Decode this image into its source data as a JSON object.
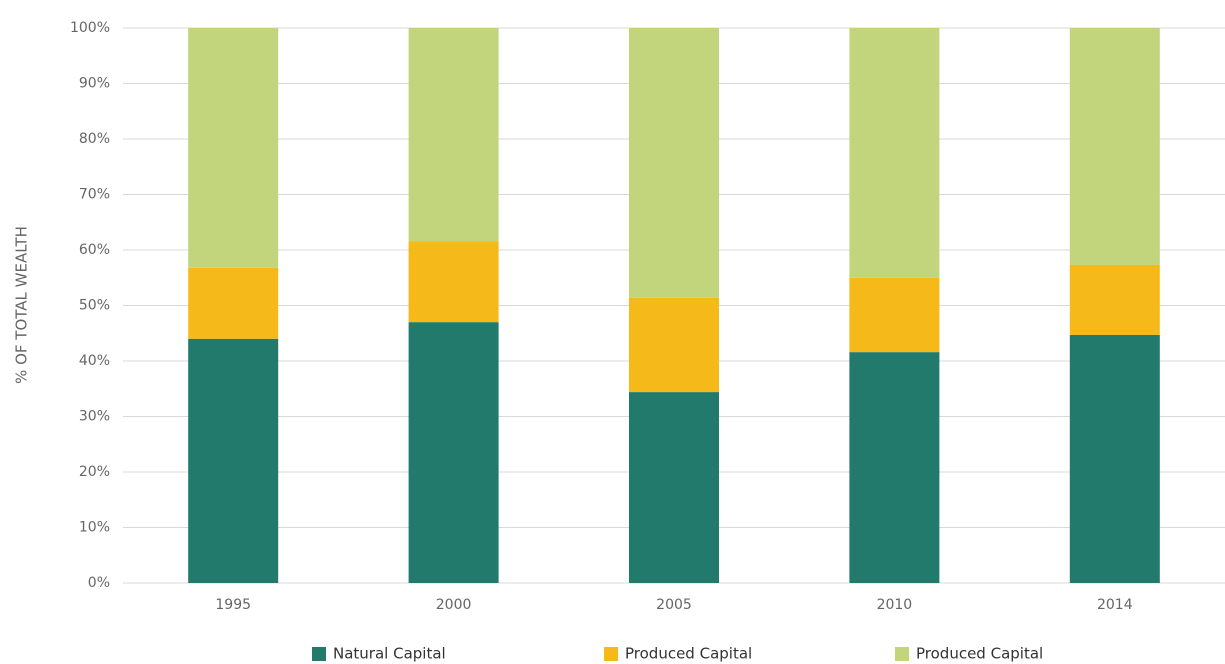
{
  "chart_data": {
    "type": "stacked_bar",
    "y_label": "% OF TOTAL WEALTH",
    "categories": [
      "1995",
      "2000",
      "2005",
      "2010",
      "2014"
    ],
    "series": [
      {
        "name": "Natural Capital",
        "color": "#217a6b",
        "values": [
          44.0,
          47.0,
          34.4,
          41.6,
          44.7
        ]
      },
      {
        "name": "Produced Capital",
        "color": "#f5b91a",
        "values": [
          12.8,
          14.6,
          17.0,
          13.4,
          12.6
        ]
      },
      {
        "name": "Produced Capital",
        "color": "#c2d57c",
        "values": [
          43.2,
          38.4,
          48.6,
          45.0,
          42.7
        ]
      }
    ],
    "ylim": [
      0,
      100
    ],
    "yticks": [
      {
        "value": 0,
        "label": "0%"
      },
      {
        "value": 10,
        "label": "10%"
      },
      {
        "value": 20,
        "label": "20%"
      },
      {
        "value": 30,
        "label": "30%"
      },
      {
        "value": 40,
        "label": "40%"
      },
      {
        "value": 50,
        "label": "50%"
      },
      {
        "value": 60,
        "label": "60%"
      },
      {
        "value": 70,
        "label": "70%"
      },
      {
        "value": 80,
        "label": "80%"
      },
      {
        "value": 90,
        "label": "90%"
      },
      {
        "value": 100,
        "label": "100%"
      }
    ],
    "grid": true,
    "legend": "bottom"
  }
}
